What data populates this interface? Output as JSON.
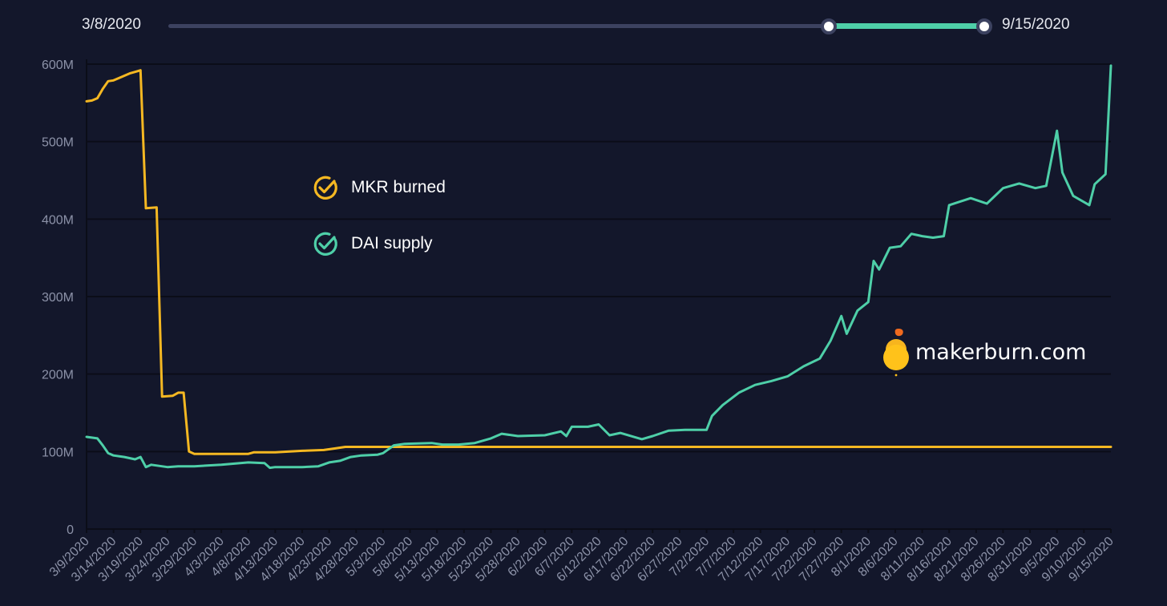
{
  "range": {
    "start_label": "3/8/2020",
    "end_label": "9/15/2020"
  },
  "legend": [
    {
      "label": "MKR burned",
      "icon": "check-circle-icon",
      "color": "#f5b822"
    },
    {
      "label": "DAI supply",
      "icon": "check-circle-icon",
      "color": "#4ecfa8"
    }
  ],
  "brand": {
    "text": "makerburn.com",
    "icon": "maker-flame-icon"
  },
  "colors": {
    "background": "#13172b",
    "grid": "#0b0d18",
    "axis_text": "#8c92a8",
    "mkr": "#f5b822",
    "dai": "#4ecfa8"
  },
  "chart_data": {
    "type": "line",
    "x_start": "3/9/2020",
    "x_end": "9/15/2020",
    "x_ticks": [
      "3/9/2020",
      "3/14/2020",
      "3/19/2020",
      "3/24/2020",
      "3/29/2020",
      "4/3/2020",
      "4/8/2020",
      "4/13/2020",
      "4/18/2020",
      "4/23/2020",
      "4/28/2020",
      "5/3/2020",
      "5/8/2020",
      "5/13/2020",
      "5/18/2020",
      "5/23/2020",
      "5/28/2020",
      "6/2/2020",
      "6/7/2020",
      "6/12/2020",
      "6/17/2020",
      "6/22/2020",
      "6/27/2020",
      "7/2/2020",
      "7/7/2020",
      "7/12/2020",
      "7/17/2020",
      "7/22/2020",
      "7/27/2020",
      "8/1/2020",
      "8/6/2020",
      "8/11/2020",
      "8/16/2020",
      "8/21/2020",
      "8/26/2020",
      "8/31/2020",
      "9/5/2020",
      "9/10/2020",
      "9/15/2020"
    ],
    "y_ticks": [
      "0",
      "100M",
      "200M",
      "300M",
      "400M",
      "500M",
      "600M"
    ],
    "ylim": [
      0,
      600
    ],
    "y_unit": "M",
    "grid": true,
    "legend_position": "top-left",
    "series": [
      {
        "name": "MKR burned",
        "color": "#f5b822",
        "points": [
          [
            "3/9/2020",
            552
          ],
          [
            "3/10/2020",
            553
          ],
          [
            "3/11/2020",
            556
          ],
          [
            "3/12/2020",
            568
          ],
          [
            "3/13/2020",
            578
          ],
          [
            "3/14/2020",
            579
          ],
          [
            "3/15/2020",
            582
          ],
          [
            "3/16/2020",
            585
          ],
          [
            "3/17/2020",
            588
          ],
          [
            "3/18/2020",
            590
          ],
          [
            "3/19/2020",
            592
          ],
          [
            "3/20/2020",
            414
          ],
          [
            "3/22/2020",
            415
          ],
          [
            "3/23/2020",
            171
          ],
          [
            "3/25/2020",
            172
          ],
          [
            "3/26/2020",
            176
          ],
          [
            "3/27/2020",
            176
          ],
          [
            "3/28/2020",
            100
          ],
          [
            "3/29/2020",
            97
          ],
          [
            "4/8/2020",
            97
          ],
          [
            "4/9/2020",
            99
          ],
          [
            "4/13/2020",
            99
          ],
          [
            "4/18/2020",
            101
          ],
          [
            "4/22/2020",
            102
          ],
          [
            "4/24/2020",
            104
          ],
          [
            "4/26/2020",
            106
          ],
          [
            "9/15/2020",
            106
          ]
        ]
      },
      {
        "name": "DAI supply",
        "color": "#4ecfa8",
        "points": [
          [
            "3/9/2020",
            119
          ],
          [
            "3/11/2020",
            117
          ],
          [
            "3/12/2020",
            108
          ],
          [
            "3/13/2020",
            98
          ],
          [
            "3/14/2020",
            95
          ],
          [
            "3/16/2020",
            93
          ],
          [
            "3/18/2020",
            90
          ],
          [
            "3/19/2020",
            93
          ],
          [
            "3/20/2020",
            80
          ],
          [
            "3/21/2020",
            83
          ],
          [
            "3/24/2020",
            80
          ],
          [
            "3/26/2020",
            81
          ],
          [
            "3/29/2020",
            81
          ],
          [
            "4/3/2020",
            83
          ],
          [
            "4/8/2020",
            86
          ],
          [
            "4/11/2020",
            85
          ],
          [
            "4/12/2020",
            79
          ],
          [
            "4/13/2020",
            80
          ],
          [
            "4/18/2020",
            80
          ],
          [
            "4/21/2020",
            81
          ],
          [
            "4/23/2020",
            86
          ],
          [
            "4/25/2020",
            88
          ],
          [
            "4/27/2020",
            93
          ],
          [
            "4/29/2020",
            95
          ],
          [
            "5/2/2020",
            96
          ],
          [
            "5/3/2020",
            98
          ],
          [
            "5/5/2020",
            108
          ],
          [
            "5/7/2020",
            110
          ],
          [
            "5/12/2020",
            111
          ],
          [
            "5/14/2020",
            109
          ],
          [
            "5/17/2020",
            109
          ],
          [
            "5/20/2020",
            111
          ],
          [
            "5/23/2020",
            117
          ],
          [
            "5/25/2020",
            123
          ],
          [
            "5/28/2020",
            120
          ],
          [
            "6/2/2020",
            121
          ],
          [
            "6/5/2020",
            126
          ],
          [
            "6/6/2020",
            120
          ],
          [
            "6/7/2020",
            132
          ],
          [
            "6/10/2020",
            132
          ],
          [
            "6/12/2020",
            135
          ],
          [
            "6/14/2020",
            121
          ],
          [
            "6/16/2020",
            124
          ],
          [
            "6/20/2020",
            116
          ],
          [
            "6/22/2020",
            120
          ],
          [
            "6/25/2020",
            127
          ],
          [
            "6/28/2020",
            128
          ],
          [
            "7/2/2020",
            128
          ],
          [
            "7/3/2020",
            146
          ],
          [
            "7/5/2020",
            160
          ],
          [
            "7/8/2020",
            176
          ],
          [
            "7/11/2020",
            186
          ],
          [
            "7/14/2020",
            191
          ],
          [
            "7/17/2020",
            197
          ],
          [
            "7/20/2020",
            210
          ],
          [
            "7/23/2020",
            220
          ],
          [
            "7/25/2020",
            243
          ],
          [
            "7/27/2020",
            275
          ],
          [
            "7/28/2020",
            252
          ],
          [
            "7/30/2020",
            282
          ],
          [
            "8/1/2020",
            293
          ],
          [
            "8/2/2020",
            346
          ],
          [
            "8/3/2020",
            335
          ],
          [
            "8/5/2020",
            363
          ],
          [
            "8/7/2020",
            365
          ],
          [
            "8/9/2020",
            381
          ],
          [
            "8/11/2020",
            378
          ],
          [
            "8/13/2020",
            376
          ],
          [
            "8/15/2020",
            378
          ],
          [
            "8/16/2020",
            418
          ],
          [
            "8/20/2020",
            427
          ],
          [
            "8/23/2020",
            420
          ],
          [
            "8/26/2020",
            440
          ],
          [
            "8/29/2020",
            446
          ],
          [
            "9/1/2020",
            440
          ],
          [
            "9/3/2020",
            443
          ],
          [
            "9/5/2020",
            514
          ],
          [
            "9/6/2020",
            460
          ],
          [
            "9/8/2020",
            430
          ],
          [
            "9/11/2020",
            418
          ],
          [
            "9/12/2020",
            445
          ],
          [
            "9/14/2020",
            458
          ],
          [
            "9/15/2020",
            598
          ]
        ]
      }
    ]
  }
}
